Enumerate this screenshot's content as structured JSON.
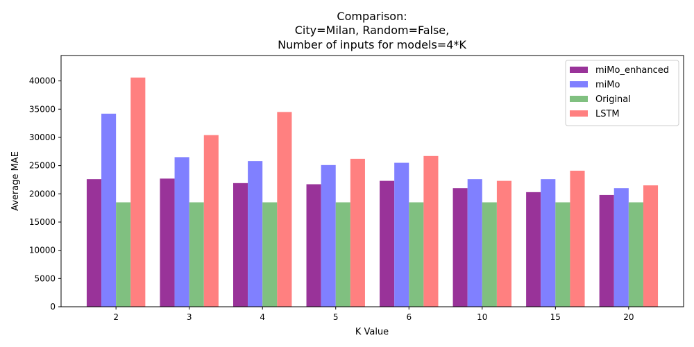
{
  "chart_data": {
    "type": "bar",
    "title_lines": [
      "Comparison:",
      "City=Milan, Random=False,",
      "Number of inputs for models=4*K"
    ],
    "xlabel": "K Value",
    "ylabel": "Average MAE",
    "categories": [
      "2",
      "3",
      "4",
      "5",
      "6",
      "10",
      "15",
      "20"
    ],
    "ylim": [
      0,
      44500
    ],
    "yticks": [
      0,
      5000,
      10000,
      15000,
      20000,
      25000,
      30000,
      35000,
      40000
    ],
    "legend_position": "top-right",
    "grid": false,
    "series": [
      {
        "name": "miMo_enhanced",
        "color": "#993399",
        "values": [
          22600,
          22700,
          21900,
          21700,
          22300,
          21000,
          20300,
          19800
        ]
      },
      {
        "name": "miMo",
        "color": "#8080ff",
        "values": [
          34200,
          26500,
          25800,
          25100,
          25500,
          22600,
          22600,
          21000
        ]
      },
      {
        "name": "Original",
        "color": "#80c080",
        "values": [
          18500,
          18500,
          18500,
          18500,
          18500,
          18500,
          18500,
          18500
        ]
      },
      {
        "name": "LSTM",
        "color": "#ff8080",
        "values": [
          40600,
          30400,
          34500,
          26200,
          26700,
          22300,
          24100,
          21500
        ]
      }
    ]
  }
}
